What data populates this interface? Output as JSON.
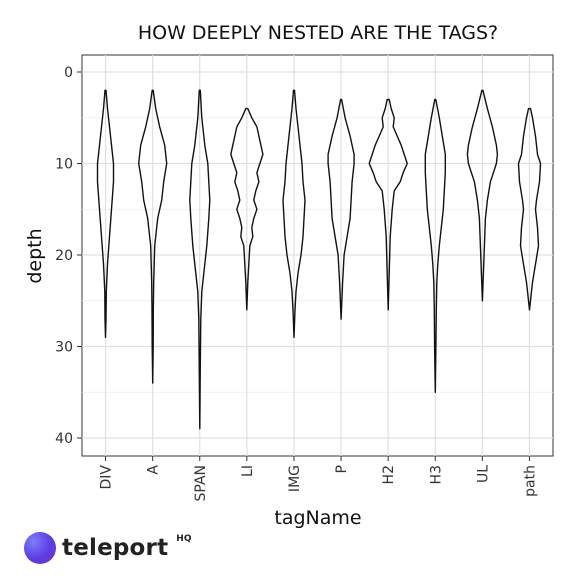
{
  "chart_data": {
    "type": "violin",
    "title": "HOW DEEPLY NESTED ARE THE TAGS?",
    "xlabel": "tagName",
    "ylabel": "depth",
    "y_reversed": true,
    "ylim": [
      0,
      42
    ],
    "y_ticks": [
      0,
      10,
      20,
      30,
      40
    ],
    "grid": true,
    "categories": [
      "DIV",
      "A",
      "SPAN",
      "LI",
      "IMG",
      "P",
      "H2",
      "H3",
      "UL",
      "path"
    ],
    "series": [
      {
        "category": "DIV",
        "min": 2,
        "max": 29
      },
      {
        "category": "A",
        "min": 2,
        "max": 34
      },
      {
        "category": "SPAN",
        "min": 2,
        "max": 39
      },
      {
        "category": "LI",
        "min": 4,
        "max": 26
      },
      {
        "category": "IMG",
        "min": 2,
        "max": 29
      },
      {
        "category": "P",
        "min": 3,
        "max": 27
      },
      {
        "category": "H2",
        "min": 3,
        "max": 26
      },
      {
        "category": "H3",
        "min": 3,
        "max": 35
      },
      {
        "category": "UL",
        "min": 2,
        "max": 25
      },
      {
        "category": "path",
        "min": 4,
        "max": 26
      }
    ]
  },
  "branding": {
    "logo_text": "teleport",
    "logo_suffix": "HQ",
    "accent": "#5b3de0"
  }
}
